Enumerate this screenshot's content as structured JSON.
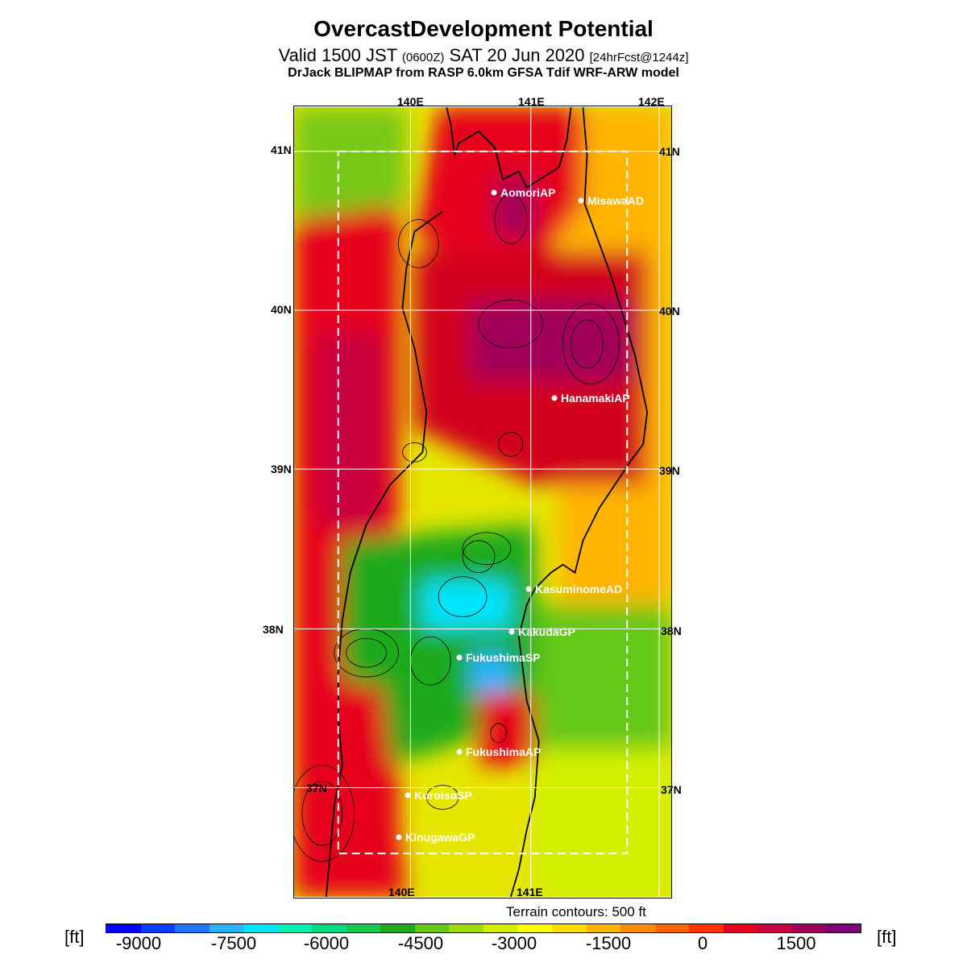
{
  "header": {
    "title": "OvercastDevelopment Potential",
    "valid_prefix": "Valid 1500 JST",
    "valid_zulu": "(0600Z)",
    "valid_date": "SAT 20 Jun 2020",
    "valid_fcst": "[24hrFcst@1244z]",
    "subtitle": "DrJack BLIPMAP from RASP 6.0km GFSA Tdif WRF-ARW model"
  },
  "map": {
    "lon_labels_top": [
      "140E",
      "141E",
      "142E"
    ],
    "lon_labels_bottom": [
      "140E",
      "141E"
    ],
    "lat_labels_left": [
      "41N",
      "40N",
      "39N",
      "38N",
      "37N"
    ],
    "lat_labels_right": [
      "41N",
      "40N",
      "39N",
      "38N",
      "37N"
    ],
    "stations": [
      {
        "name": "AomoriAP"
      },
      {
        "name": "MisawaAD"
      },
      {
        "name": "HanamakiAP"
      },
      {
        "name": "KasuminomeAD"
      },
      {
        "name": "KakudaGP"
      },
      {
        "name": "FukushimaSP"
      },
      {
        "name": "FukushimaAP"
      },
      {
        "name": "KuroisoSP"
      },
      {
        "name": "KinugawaGP"
      }
    ],
    "terrain_note": "Terrain contours: 500 ft"
  },
  "colorbar": {
    "unit": "[ft]",
    "tick_labels": [
      "-9000",
      "-7500",
      "-6000",
      "-4500",
      "-3000",
      "-1500",
      "0",
      "1500"
    ],
    "colors": [
      "#0000ff",
      "#0a3cff",
      "#1e78ff",
      "#28b4ff",
      "#00e6ff",
      "#00f0b4",
      "#00dc82",
      "#14c850",
      "#1eaa1e",
      "#64c814",
      "#a0dc0a",
      "#d2f000",
      "#ffff00",
      "#ffdc00",
      "#ffb400",
      "#ff8c00",
      "#ff6400",
      "#ff3200",
      "#e6001e",
      "#c8003c",
      "#a0005a",
      "#7d0078"
    ]
  }
}
